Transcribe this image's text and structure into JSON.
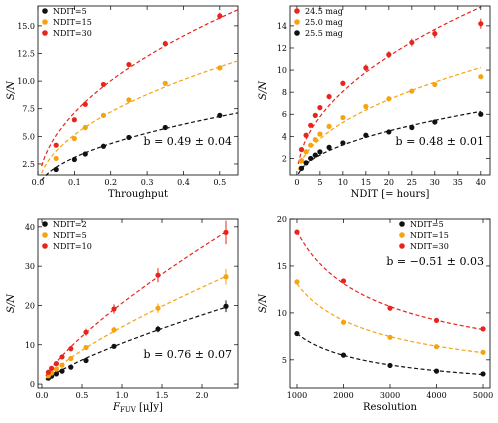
{
  "colors": {
    "black": "#111111",
    "orange": "#f5a310",
    "red": "#e8251d"
  },
  "chart_data": [
    {
      "type": "scatter",
      "xlabel": "Throughput",
      "ylabel": "S/N",
      "xlim": [
        0,
        0.55
      ],
      "ylim": [
        1.5,
        16.8
      ],
      "xticks": [
        0.0,
        0.1,
        0.2,
        0.3,
        0.4,
        0.5
      ],
      "xtick_labels": [
        "0.0",
        "0.1",
        "0.2",
        "0.3",
        "0.4",
        "0.5"
      ],
      "yticks": [
        2.5,
        5.0,
        7.5,
        10.0,
        12.5,
        15.0
      ],
      "ytick_labels": [
        "2.5",
        "5.0",
        "7.5",
        "10.0",
        "12.5",
        "15.0"
      ],
      "legend": "top-left",
      "annotation": "b = 0.49 ± 0.04",
      "fit": {
        "type": "power",
        "b": 0.49,
        "x_from": 0.01,
        "x_to": 0.55
      },
      "series": [
        {
          "name": "NDIT=5",
          "color": "black",
          "x": [
            0.05,
            0.1,
            0.13,
            0.18,
            0.25,
            0.35,
            0.5
          ],
          "y": [
            2.0,
            2.9,
            3.4,
            4.1,
            4.9,
            5.8,
            6.9
          ],
          "err": [
            0.1,
            0.1,
            0.1,
            0.1,
            0.1,
            0.1,
            0.15
          ]
        },
        {
          "name": "NDIT=15",
          "color": "orange",
          "x": [
            0.05,
            0.1,
            0.13,
            0.18,
            0.25,
            0.35,
            0.5
          ],
          "y": [
            3.0,
            4.8,
            5.8,
            6.9,
            8.3,
            9.8,
            11.2
          ],
          "err": [
            0.1,
            0.15,
            0.15,
            0.15,
            0.15,
            0.2,
            0.2
          ]
        },
        {
          "name": "NDIT=30",
          "color": "red",
          "x": [
            0.05,
            0.1,
            0.13,
            0.18,
            0.25,
            0.35,
            0.5
          ],
          "y": [
            4.2,
            6.5,
            7.9,
            9.7,
            11.5,
            13.4,
            15.9
          ],
          "err": [
            0.15,
            0.2,
            0.2,
            0.2,
            0.2,
            0.25,
            0.3
          ]
        }
      ]
    },
    {
      "type": "scatter",
      "xlabel": "NDIT [= hours]",
      "ylabel": "S/N",
      "xlim": [
        -1.5,
        42
      ],
      "ylim": [
        0.5,
        15.8
      ],
      "xticks": [
        0,
        5,
        10,
        15,
        20,
        25,
        30,
        35,
        40
      ],
      "xtick_labels": [
        "0",
        "5",
        "10",
        "15",
        "20",
        "25",
        "30",
        "35",
        "40"
      ],
      "yticks": [
        2,
        4,
        6,
        8,
        10,
        12,
        14
      ],
      "ytick_labels": [
        "2",
        "4",
        "6",
        "8",
        "10",
        "12",
        "14"
      ],
      "legend": "top-left",
      "annotation": "b = 0.48 ± 0.01",
      "fit": {
        "type": "power",
        "b": 0.48,
        "x_from": 0.3,
        "x_to": 40
      },
      "series": [
        {
          "name": "24.5 mag",
          "color": "red",
          "x": [
            1,
            2,
            3,
            4,
            5,
            7,
            10,
            15,
            20,
            25,
            30,
            40
          ],
          "y": [
            2.8,
            4.1,
            5.0,
            5.9,
            6.6,
            7.6,
            8.8,
            10.2,
            11.4,
            12.5,
            13.3,
            14.2
          ],
          "err": [
            0.15,
            0.2,
            0.2,
            0.2,
            0.2,
            0.25,
            0.25,
            0.3,
            0.3,
            0.35,
            0.4,
            0.45
          ]
        },
        {
          "name": "25.0 mag",
          "color": "orange",
          "x": [
            1,
            2,
            3,
            4,
            5,
            7,
            10,
            15,
            20,
            25,
            30,
            40
          ],
          "y": [
            1.8,
            2.6,
            3.2,
            3.7,
            4.2,
            4.9,
            5.7,
            6.7,
            7.4,
            8.1,
            8.7,
            9.4
          ],
          "err": [
            0.1,
            0.1,
            0.1,
            0.1,
            0.15,
            0.15,
            0.15,
            0.15,
            0.15,
            0.15,
            0.2,
            0.2
          ]
        },
        {
          "name": "25.5 mag",
          "color": "black",
          "x": [
            1,
            2,
            3,
            4,
            5,
            7,
            10,
            15,
            20,
            25,
            30,
            40
          ],
          "y": [
            1.1,
            1.6,
            2.0,
            2.3,
            2.6,
            3.0,
            3.4,
            4.1,
            4.4,
            4.8,
            5.3,
            6.0
          ],
          "err": [
            0.05,
            0.05,
            0.05,
            0.05,
            0.05,
            0.05,
            0.05,
            0.05,
            0.05,
            0.05,
            0.05,
            0.1
          ]
        }
      ]
    },
    {
      "type": "scatter",
      "xlabel": "F_FUV [μJy]",
      "xlabel_main": "F",
      "xlabel_sub": "FUV",
      "xlabel_unit": " [μJy]",
      "ylabel": "S/N",
      "xlim": [
        -0.05,
        2.45
      ],
      "ylim": [
        -1,
        42
      ],
      "xticks": [
        0.0,
        0.5,
        1.0,
        1.5,
        2.0
      ],
      "xtick_labels": [
        "0.0",
        "0.5",
        "1.0",
        "1.5",
        "2.0"
      ],
      "yticks": [
        0,
        10,
        20,
        30,
        40
      ],
      "ytick_labels": [
        "0",
        "10",
        "20",
        "30",
        "40"
      ],
      "legend": "top-left",
      "annotation": "b = 0.76 ± 0.07",
      "fit": {
        "type": "power",
        "b": 0.76,
        "x_from": 0.05,
        "x_to": 2.32
      },
      "series": [
        {
          "name": "NDIT=2",
          "color": "black",
          "x": [
            0.08,
            0.12,
            0.18,
            0.25,
            0.36,
            0.55,
            0.9,
            1.45,
            2.3
          ],
          "y": [
            1.5,
            2.0,
            2.6,
            3.3,
            4.3,
            6.0,
            9.6,
            14.0,
            19.8
          ],
          "err": [
            0.2,
            0.2,
            0.2,
            0.3,
            0.3,
            0.4,
            0.5,
            0.8,
            1.5
          ]
        },
        {
          "name": "NDIT=5",
          "color": "orange",
          "x": [
            0.08,
            0.12,
            0.18,
            0.25,
            0.36,
            0.55,
            0.9,
            1.45,
            2.3
          ],
          "y": [
            2.1,
            2.8,
            3.8,
            4.8,
            6.5,
            9.3,
            13.8,
            19.3,
            27.3
          ],
          "err": [
            0.3,
            0.3,
            0.3,
            0.4,
            0.5,
            0.6,
            0.8,
            1.2,
            2.0
          ]
        },
        {
          "name": "NDIT=10",
          "color": "red",
          "x": [
            0.08,
            0.12,
            0.18,
            0.25,
            0.36,
            0.55,
            0.9,
            1.45,
            2.3
          ],
          "y": [
            3.0,
            4.0,
            5.2,
            6.9,
            9.0,
            13.2,
            19.1,
            27.7,
            38.6
          ],
          "err": [
            0.4,
            0.4,
            0.5,
            0.6,
            0.7,
            0.9,
            1.2,
            1.8,
            3.0
          ]
        }
      ]
    },
    {
      "type": "scatter",
      "xlabel": "Resolution",
      "ylabel": "S/N",
      "xlim": [
        850,
        5150
      ],
      "ylim": [
        2,
        20
      ],
      "xticks": [
        1000,
        2000,
        3000,
        4000,
        5000
      ],
      "xtick_labels": [
        "1000",
        "2000",
        "3000",
        "4000",
        "5000"
      ],
      "yticks": [
        5,
        10,
        15,
        20
      ],
      "ytick_labels": [
        "5",
        "10",
        "15",
        "20"
      ],
      "legend": "top-right",
      "annotation": "b = −0.51 ± 0.03",
      "fit": {
        "type": "power",
        "b": -0.51,
        "x_from": 1000,
        "x_to": 5000
      },
      "series": [
        {
          "name": "NDIT=5",
          "color": "black",
          "x": [
            1000,
            2000,
            3000,
            4000,
            5000
          ],
          "y": [
            7.8,
            5.5,
            4.4,
            3.8,
            3.5
          ],
          "err": [
            0.2,
            0.15,
            0.15,
            0.1,
            0.1
          ]
        },
        {
          "name": "NDIT=15",
          "color": "orange",
          "x": [
            1000,
            2000,
            3000,
            4000,
            5000
          ],
          "y": [
            13.3,
            9.0,
            7.4,
            6.4,
            5.8
          ],
          "err": [
            0.2,
            0.2,
            0.15,
            0.15,
            0.15
          ]
        },
        {
          "name": "NDIT=30",
          "color": "red",
          "x": [
            1000,
            2000,
            3000,
            4000,
            5000
          ],
          "y": [
            18.6,
            13.4,
            10.5,
            9.2,
            8.3
          ],
          "err": [
            0.25,
            0.2,
            0.2,
            0.15,
            0.15
          ]
        }
      ]
    }
  ]
}
